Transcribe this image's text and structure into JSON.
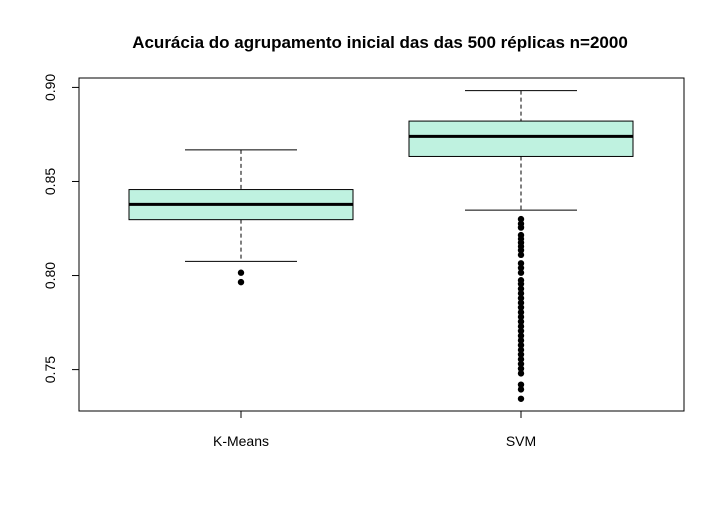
{
  "chart_data": {
    "type": "box",
    "title": "Acurácia do agrupamento inicial das das 500 réplicas n=2000",
    "xlabel": "",
    "ylabel": "",
    "ylim": [
      0.728,
      0.905
    ],
    "yticks": [
      "0.75",
      "0.80",
      "0.85",
      "0.90"
    ],
    "ytick_values": [
      0.75,
      0.8,
      0.85,
      0.9
    ],
    "grid": false,
    "legend": "none",
    "box_fill": "#bff2e0",
    "categories": [
      "K-Means",
      "SVM"
    ],
    "boxes": [
      {
        "category": "K-Means",
        "whisker_low": 0.8075,
        "q1": 0.8297,
        "median": 0.8378,
        "q3": 0.8457,
        "whisker_high": 0.8668,
        "outliers": [
          0.8015,
          0.7965
        ]
      },
      {
        "category": "SVM",
        "whisker_low": 0.8348,
        "q1": 0.8633,
        "median": 0.874,
        "q3": 0.8821,
        "whisker_high": 0.8983,
        "outliers": [
          0.83,
          0.8275,
          0.8255,
          0.8215,
          0.8195,
          0.8175,
          0.8155,
          0.8135,
          0.811,
          0.8065,
          0.804,
          0.8015,
          0.7975,
          0.7955,
          0.793,
          0.7905,
          0.788,
          0.7855,
          0.783,
          0.7805,
          0.778,
          0.7755,
          0.773,
          0.7705,
          0.768,
          0.7655,
          0.763,
          0.7605,
          0.758,
          0.7555,
          0.753,
          0.7505,
          0.748,
          0.742,
          0.7395,
          0.7345
        ]
      }
    ]
  }
}
